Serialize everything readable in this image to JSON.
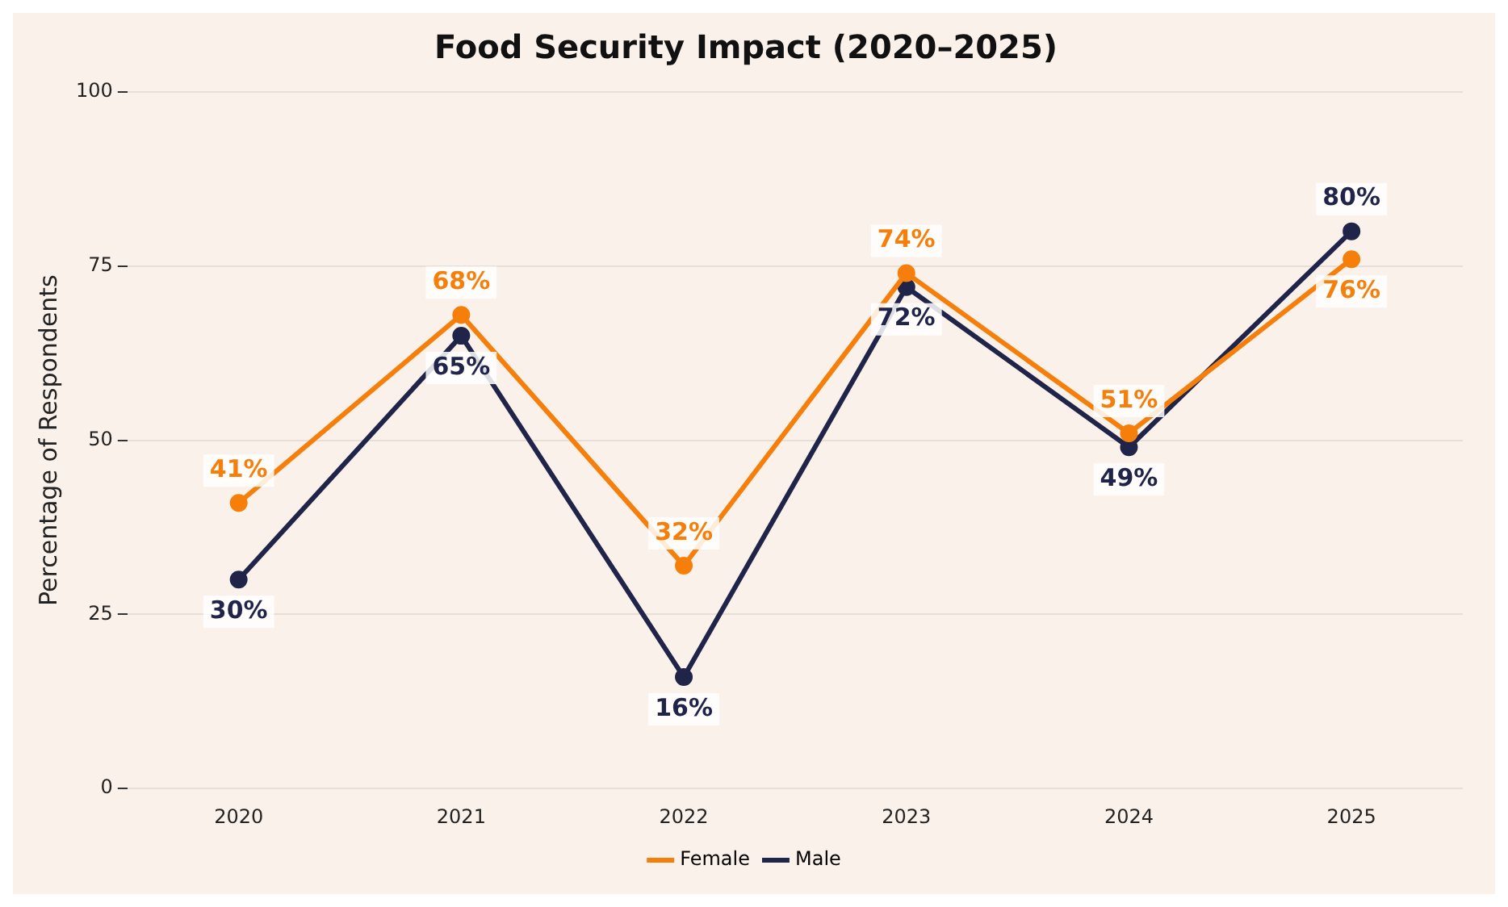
{
  "chart_data": {
    "type": "line",
    "title": "Food Security Impact (2020–2025)",
    "ylabel": "Percentage of Respondents",
    "categories": [
      "2020",
      "2021",
      "2022",
      "2023",
      "2024",
      "2025"
    ],
    "series": [
      {
        "name": "Female",
        "color": "#f57f0a",
        "values": [
          41,
          68,
          32,
          74,
          51,
          76
        ],
        "value_labels": [
          "41%",
          "68%",
          "32%",
          "74%",
          "51%",
          "76%"
        ]
      },
      {
        "name": "Male",
        "color": "#1f2448",
        "values": [
          30,
          65,
          16,
          72,
          49,
          80
        ],
        "value_labels": [
          "30%",
          "65%",
          "16%",
          "72%",
          "49%",
          "80%"
        ]
      }
    ],
    "ylim": [
      0,
      100
    ],
    "yticks": [
      0,
      25,
      50,
      75,
      100
    ],
    "grid": "y",
    "legend": "bottom",
    "marker": "circle",
    "line_style": "solid"
  }
}
